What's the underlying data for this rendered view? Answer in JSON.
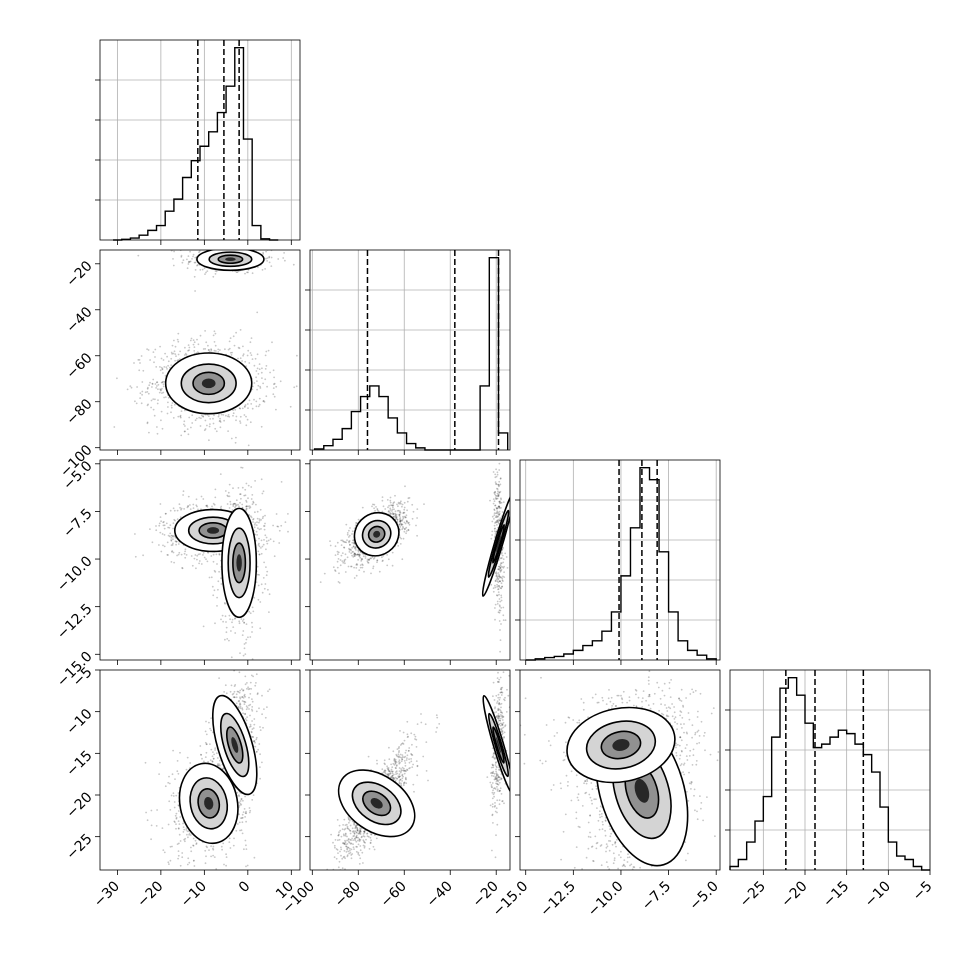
{
  "chart_data": {
    "type": "corner",
    "parameters": [
      {
        "lim": [
          -34,
          12
        ],
        "ticks": [
          -30,
          -20,
          -10,
          0,
          10
        ],
        "tick_labels": [
          "−30",
          "−20",
          "−10",
          "0",
          "10"
        ],
        "quantiles": [
          -11.5,
          -5.5,
          -2
        ],
        "hist_centers": [
          -30,
          -28,
          -26,
          -24,
          -22,
          -20,
          -18,
          -16,
          -14,
          -12,
          -10,
          -8,
          -6,
          -4,
          -2,
          0,
          2,
          4,
          6
        ],
        "hist_counts": [
          0,
          0.3,
          0.8,
          2,
          4,
          6,
          12,
          17,
          26,
          33,
          39,
          45,
          53,
          64,
          80,
          42,
          6,
          0.5,
          0
        ]
      },
      {
        "lim": [
          -101,
          -14
        ],
        "ticks": [
          -100,
          -80,
          -60,
          -40,
          -20
        ],
        "tick_labels": [
          "−100",
          "−80",
          "−60",
          "−40",
          "−20"
        ],
        "quantiles": [
          -76,
          -38,
          -19
        ],
        "hist_centers": [
          -97,
          -93,
          -89,
          -85,
          -81,
          -77,
          -73,
          -69,
          -65,
          -61,
          -57,
          -53,
          -49,
          -45,
          -41,
          -37,
          -33,
          -29,
          -25,
          -21,
          -17
        ],
        "hist_counts": [
          0.5,
          2,
          5,
          10,
          18,
          25,
          30,
          25,
          15,
          8,
          3,
          1,
          0,
          0,
          0,
          0,
          0,
          0,
          30,
          90,
          8
        ]
      },
      {
        "lim": [
          -15.3,
          -4.8
        ],
        "ticks": [
          -15.0,
          -12.5,
          -10.0,
          -7.5,
          -5.0
        ],
        "tick_labels": [
          "−15.0",
          "−12.5",
          "−10.0",
          "−7.5",
          "−5.0"
        ],
        "quantiles": [
          -10.1,
          -8.9,
          -8.1
        ],
        "hist_centers": [
          -14.75,
          -14.25,
          -13.75,
          -13.25,
          -12.75,
          -12.25,
          -11.75,
          -11.25,
          -10.75,
          -10.25,
          -9.75,
          -9.25,
          -8.75,
          -8.25,
          -7.75,
          -7.25,
          -6.75,
          -6.25,
          -5.75,
          -5.25
        ],
        "hist_counts": [
          0,
          0.5,
          1,
          1.5,
          2.5,
          4,
          6,
          8,
          12,
          20,
          35,
          55,
          80,
          75,
          45,
          20,
          8,
          4,
          2,
          0.5
        ]
      },
      {
        "lim": [
          -29,
          -5
        ],
        "ticks": [
          -25,
          -20,
          -15,
          -10,
          -5
        ],
        "tick_labels": [
          "−25",
          "−20",
          "−15",
          "−10",
          "−5"
        ],
        "quantiles": [
          -22.3,
          -18.8,
          -13
        ],
        "hist_centers": [
          -28.5,
          -27.5,
          -26.5,
          -25.5,
          -24.5,
          -23.5,
          -22.5,
          -21.5,
          -20.5,
          -19.5,
          -18.5,
          -17.5,
          -16.5,
          -15.5,
          -14.5,
          -13.5,
          -12.5,
          -11.5,
          -10.5,
          -9.5,
          -8.5,
          -7.5,
          -6.5,
          -5.5
        ],
        "hist_counts": [
          1,
          3,
          8,
          14,
          21,
          38,
          52,
          55,
          50,
          42,
          35,
          36,
          38,
          40,
          39,
          36,
          33,
          28,
          18,
          8,
          4,
          3,
          1,
          0
        ]
      }
    ],
    "diag_ticks": [
      [
        -30,
        -20,
        -10,
        0,
        10
      ],
      [
        -100,
        -80,
        -60,
        -40,
        -20
      ],
      [
        -15,
        -12.5,
        -10,
        -7.5,
        -5
      ],
      [
        -25,
        -20,
        -15,
        -10,
        -5
      ]
    ],
    "blobs": {
      "1-0": [
        {
          "x": -4,
          "y": -18,
          "sx": 3.5,
          "sy": 2.2,
          "r": 0,
          "w": 0.25
        },
        {
          "x": -9,
          "y": -72,
          "sx": 4.5,
          "sy": 6,
          "r": 0,
          "w": 0.75
        }
      ],
      "2-0": [
        {
          "x": -8,
          "y": -8.5,
          "sx": 4,
          "sy": 0.5,
          "r": 0,
          "w": 0.55
        },
        {
          "x": -2,
          "y": -10.2,
          "sx": 1.8,
          "sy": 1.3,
          "r": 0,
          "w": 0.45
        }
      ],
      "2-1": [
        {
          "x": -72,
          "y": -8.7,
          "sx": 4.5,
          "sy": 0.5,
          "r": 0.6,
          "w": 0.75
        },
        {
          "x": -19,
          "y": -9.2,
          "sx": 0.8,
          "sy": 1.3,
          "r": -0.3,
          "w": 0.25
        }
      ],
      "3-0": [
        {
          "x": -9,
          "y": -21,
          "sx": 3,
          "sy": 2.2,
          "r": 0.2,
          "w": 0.5
        },
        {
          "x": -3,
          "y": -14,
          "sx": 1.8,
          "sy": 2.8,
          "r": 0.3,
          "w": 0.5
        }
      ],
      "3-1": [
        {
          "x": -72,
          "y": -21,
          "sx": 5.5,
          "sy": 2.3,
          "r": 0.85,
          "w": 0.75
        },
        {
          "x": -19,
          "y": -14,
          "sx": 1,
          "sy": 2.8,
          "r": 0.3,
          "w": 0.25
        }
      ],
      "3-2": [
        {
          "x": -8.9,
          "y": -19.5,
          "sx": 1.0,
          "sy": 4.2,
          "r": 0.3,
          "w": 0.7
        },
        {
          "x": -10,
          "y": -14,
          "sx": 1.3,
          "sy": 2,
          "r": 0.2,
          "w": 0.3
        }
      ]
    }
  }
}
